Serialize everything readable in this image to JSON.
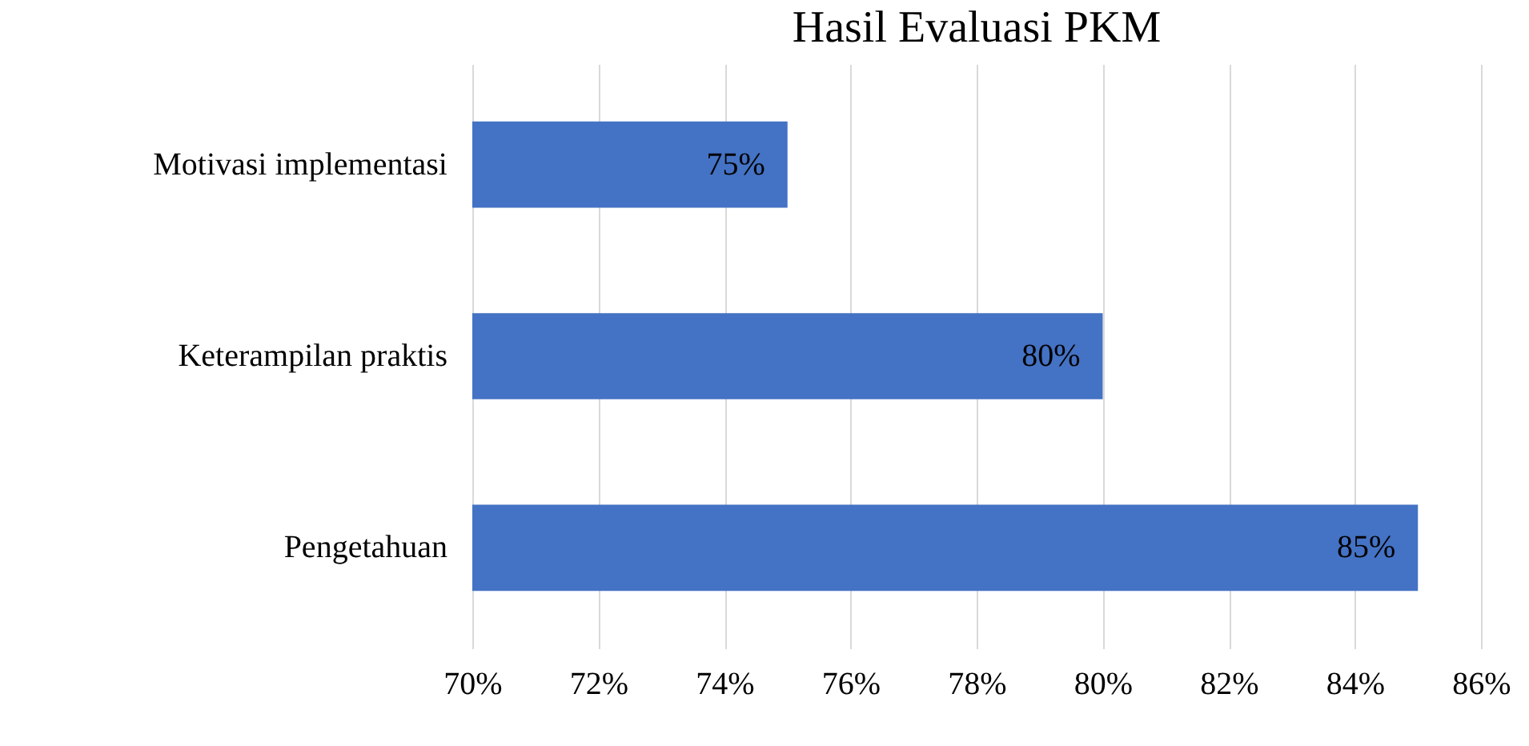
{
  "chart_data": {
    "type": "bar",
    "orientation": "horizontal",
    "title": "Hasil Evaluasi PKM",
    "categories": [
      "Motivasi implementasi",
      "Keterampilan praktis",
      "Pengetahuan"
    ],
    "values": [
      75,
      80,
      85
    ],
    "value_labels": [
      "75%",
      "80%",
      "85%"
    ],
    "color": "#4472c4",
    "xlim": [
      70,
      86
    ],
    "xticks": [
      {
        "value": 70,
        "label": "70%"
      },
      {
        "value": 72,
        "label": "72%"
      },
      {
        "value": 74,
        "label": "74%"
      },
      {
        "value": 76,
        "label": "76%"
      },
      {
        "value": 78,
        "label": "78%"
      },
      {
        "value": 80,
        "label": "80%"
      },
      {
        "value": 82,
        "label": "82%"
      },
      {
        "value": 84,
        "label": "84%"
      },
      {
        "value": 86,
        "label": "86%"
      }
    ],
    "grid": "x"
  }
}
